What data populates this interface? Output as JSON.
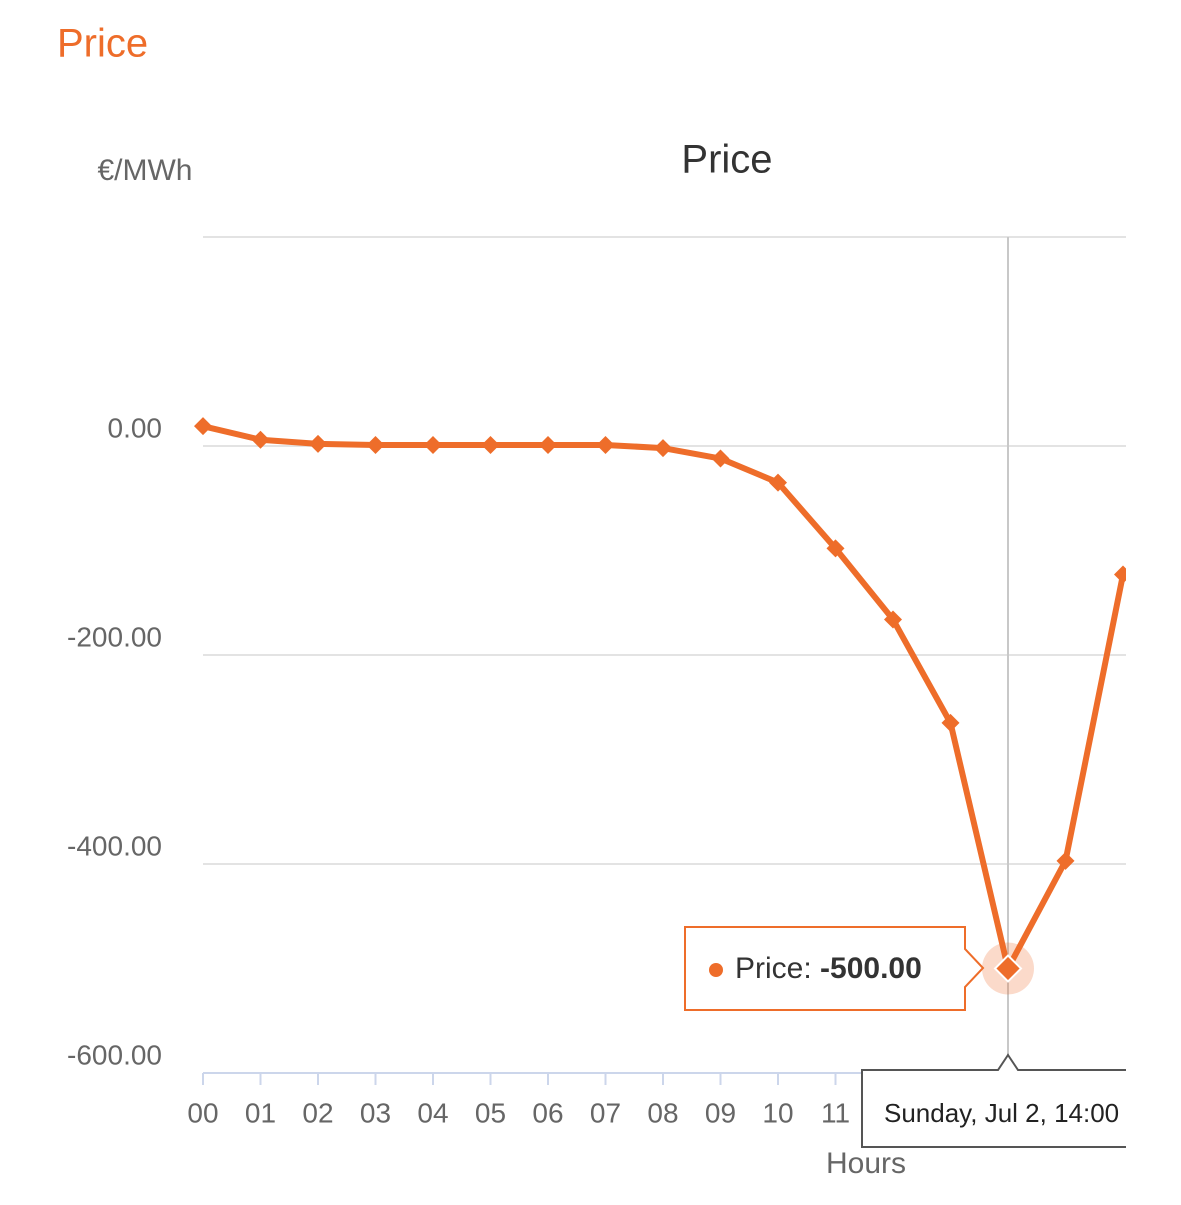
{
  "header": {
    "title": "Price"
  },
  "chart_data": {
    "type": "line",
    "title": "Price",
    "y_label": "€/MWh",
    "x_label": "Hours",
    "categories": [
      "00",
      "01",
      "02",
      "03",
      "04",
      "05",
      "06",
      "07",
      "08",
      "09",
      "10",
      "11",
      null,
      null,
      null,
      null,
      null
    ],
    "series": [
      {
        "name": "Price",
        "color": "#ee6d2a",
        "values": [
          19,
          6,
          2,
          1,
          1,
          1,
          1,
          1,
          -2,
          -12,
          -35,
          -98,
          -166,
          -265,
          -500,
          -397,
          -123
        ]
      }
    ],
    "ylim": [
      -600,
      200
    ],
    "yticks": [
      {
        "value": 0,
        "label": "0.00"
      },
      {
        "value": -200,
        "label": "-200.00"
      },
      {
        "value": -400,
        "label": "-400.00"
      },
      {
        "value": -600,
        "label": "-600.00"
      }
    ],
    "grid": true,
    "tooltip": {
      "index": 14,
      "series_label": "Price:",
      "value_label": "-500.00",
      "date": "Sunday, Jul 2, 14:00"
    }
  }
}
